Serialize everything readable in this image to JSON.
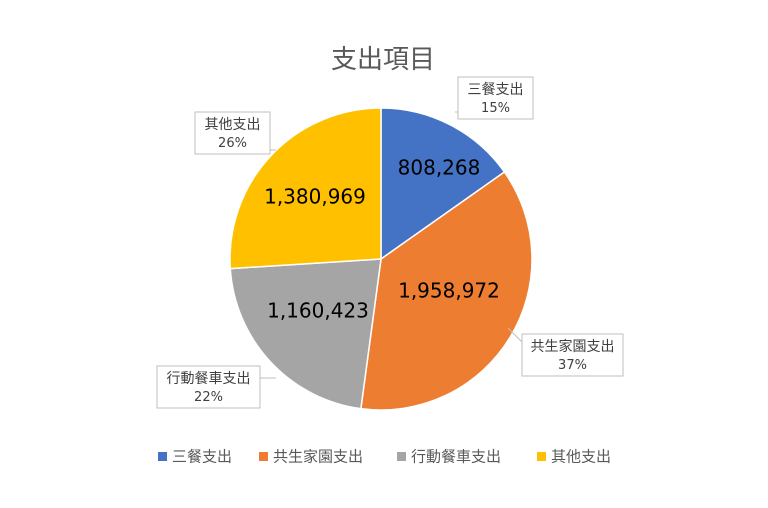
{
  "chart_data": {
    "type": "pie",
    "title": "支出項目",
    "categories": [
      "三餐支出",
      "共生家園支出",
      "行動餐車支出",
      "其他支出"
    ],
    "values": [
      808268,
      1958972,
      1160423,
      1380969
    ],
    "value_labels": [
      "808,268",
      "1,958,972",
      "1,160,423",
      "1,380,969"
    ],
    "percent_labels": [
      "15%",
      "37%",
      "22%",
      "26%"
    ],
    "colors": [
      "#4472C4",
      "#ED7D31",
      "#A5A5A5",
      "#FFC000"
    ],
    "legend": "bottom"
  }
}
